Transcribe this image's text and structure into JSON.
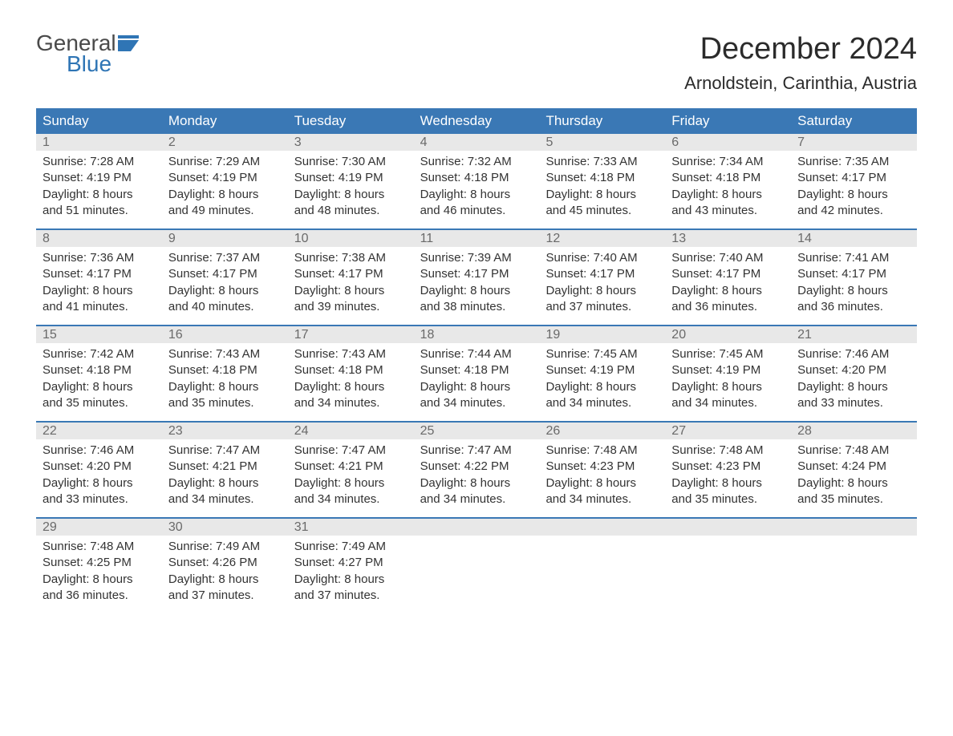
{
  "logo": {
    "line1": "General",
    "line2": "Blue"
  },
  "title": "December 2024",
  "location": "Arnoldstein, Carinthia, Austria",
  "colors": {
    "header_bg": "#3a78b5",
    "header_text": "#ffffff",
    "daynum_bg": "#e8e8e8",
    "daynum_text": "#6a6a6a",
    "rule": "#3a78b5",
    "logo_gray": "#4a4a4a",
    "logo_blue": "#2f75b5",
    "page_bg": "#ffffff",
    "body_text": "#333333"
  },
  "fonts": {
    "title_pt": 38,
    "location_pt": 22,
    "dow_pt": 17,
    "daynum_pt": 16,
    "body_pt": 15
  },
  "days_of_week": [
    "Sunday",
    "Monday",
    "Tuesday",
    "Wednesday",
    "Thursday",
    "Friday",
    "Saturday"
  ],
  "weeks": [
    [
      {
        "n": "1",
        "sunrise": "Sunrise: 7:28 AM",
        "sunset": "Sunset: 4:19 PM",
        "d1": "Daylight: 8 hours",
        "d2": "and 51 minutes."
      },
      {
        "n": "2",
        "sunrise": "Sunrise: 7:29 AM",
        "sunset": "Sunset: 4:19 PM",
        "d1": "Daylight: 8 hours",
        "d2": "and 49 minutes."
      },
      {
        "n": "3",
        "sunrise": "Sunrise: 7:30 AM",
        "sunset": "Sunset: 4:19 PM",
        "d1": "Daylight: 8 hours",
        "d2": "and 48 minutes."
      },
      {
        "n": "4",
        "sunrise": "Sunrise: 7:32 AM",
        "sunset": "Sunset: 4:18 PM",
        "d1": "Daylight: 8 hours",
        "d2": "and 46 minutes."
      },
      {
        "n": "5",
        "sunrise": "Sunrise: 7:33 AM",
        "sunset": "Sunset: 4:18 PM",
        "d1": "Daylight: 8 hours",
        "d2": "and 45 minutes."
      },
      {
        "n": "6",
        "sunrise": "Sunrise: 7:34 AM",
        "sunset": "Sunset: 4:18 PM",
        "d1": "Daylight: 8 hours",
        "d2": "and 43 minutes."
      },
      {
        "n": "7",
        "sunrise": "Sunrise: 7:35 AM",
        "sunset": "Sunset: 4:17 PM",
        "d1": "Daylight: 8 hours",
        "d2": "and 42 minutes."
      }
    ],
    [
      {
        "n": "8",
        "sunrise": "Sunrise: 7:36 AM",
        "sunset": "Sunset: 4:17 PM",
        "d1": "Daylight: 8 hours",
        "d2": "and 41 minutes."
      },
      {
        "n": "9",
        "sunrise": "Sunrise: 7:37 AM",
        "sunset": "Sunset: 4:17 PM",
        "d1": "Daylight: 8 hours",
        "d2": "and 40 minutes."
      },
      {
        "n": "10",
        "sunrise": "Sunrise: 7:38 AM",
        "sunset": "Sunset: 4:17 PM",
        "d1": "Daylight: 8 hours",
        "d2": "and 39 minutes."
      },
      {
        "n": "11",
        "sunrise": "Sunrise: 7:39 AM",
        "sunset": "Sunset: 4:17 PM",
        "d1": "Daylight: 8 hours",
        "d2": "and 38 minutes."
      },
      {
        "n": "12",
        "sunrise": "Sunrise: 7:40 AM",
        "sunset": "Sunset: 4:17 PM",
        "d1": "Daylight: 8 hours",
        "d2": "and 37 minutes."
      },
      {
        "n": "13",
        "sunrise": "Sunrise: 7:40 AM",
        "sunset": "Sunset: 4:17 PM",
        "d1": "Daylight: 8 hours",
        "d2": "and 36 minutes."
      },
      {
        "n": "14",
        "sunrise": "Sunrise: 7:41 AM",
        "sunset": "Sunset: 4:17 PM",
        "d1": "Daylight: 8 hours",
        "d2": "and 36 minutes."
      }
    ],
    [
      {
        "n": "15",
        "sunrise": "Sunrise: 7:42 AM",
        "sunset": "Sunset: 4:18 PM",
        "d1": "Daylight: 8 hours",
        "d2": "and 35 minutes."
      },
      {
        "n": "16",
        "sunrise": "Sunrise: 7:43 AM",
        "sunset": "Sunset: 4:18 PM",
        "d1": "Daylight: 8 hours",
        "d2": "and 35 minutes."
      },
      {
        "n": "17",
        "sunrise": "Sunrise: 7:43 AM",
        "sunset": "Sunset: 4:18 PM",
        "d1": "Daylight: 8 hours",
        "d2": "and 34 minutes."
      },
      {
        "n": "18",
        "sunrise": "Sunrise: 7:44 AM",
        "sunset": "Sunset: 4:18 PM",
        "d1": "Daylight: 8 hours",
        "d2": "and 34 minutes."
      },
      {
        "n": "19",
        "sunrise": "Sunrise: 7:45 AM",
        "sunset": "Sunset: 4:19 PM",
        "d1": "Daylight: 8 hours",
        "d2": "and 34 minutes."
      },
      {
        "n": "20",
        "sunrise": "Sunrise: 7:45 AM",
        "sunset": "Sunset: 4:19 PM",
        "d1": "Daylight: 8 hours",
        "d2": "and 34 minutes."
      },
      {
        "n": "21",
        "sunrise": "Sunrise: 7:46 AM",
        "sunset": "Sunset: 4:20 PM",
        "d1": "Daylight: 8 hours",
        "d2": "and 33 minutes."
      }
    ],
    [
      {
        "n": "22",
        "sunrise": "Sunrise: 7:46 AM",
        "sunset": "Sunset: 4:20 PM",
        "d1": "Daylight: 8 hours",
        "d2": "and 33 minutes."
      },
      {
        "n": "23",
        "sunrise": "Sunrise: 7:47 AM",
        "sunset": "Sunset: 4:21 PM",
        "d1": "Daylight: 8 hours",
        "d2": "and 34 minutes."
      },
      {
        "n": "24",
        "sunrise": "Sunrise: 7:47 AM",
        "sunset": "Sunset: 4:21 PM",
        "d1": "Daylight: 8 hours",
        "d2": "and 34 minutes."
      },
      {
        "n": "25",
        "sunrise": "Sunrise: 7:47 AM",
        "sunset": "Sunset: 4:22 PM",
        "d1": "Daylight: 8 hours",
        "d2": "and 34 minutes."
      },
      {
        "n": "26",
        "sunrise": "Sunrise: 7:48 AM",
        "sunset": "Sunset: 4:23 PM",
        "d1": "Daylight: 8 hours",
        "d2": "and 34 minutes."
      },
      {
        "n": "27",
        "sunrise": "Sunrise: 7:48 AM",
        "sunset": "Sunset: 4:23 PM",
        "d1": "Daylight: 8 hours",
        "d2": "and 35 minutes."
      },
      {
        "n": "28",
        "sunrise": "Sunrise: 7:48 AM",
        "sunset": "Sunset: 4:24 PM",
        "d1": "Daylight: 8 hours",
        "d2": "and 35 minutes."
      }
    ],
    [
      {
        "n": "29",
        "sunrise": "Sunrise: 7:48 AM",
        "sunset": "Sunset: 4:25 PM",
        "d1": "Daylight: 8 hours",
        "d2": "and 36 minutes."
      },
      {
        "n": "30",
        "sunrise": "Sunrise: 7:49 AM",
        "sunset": "Sunset: 4:26 PM",
        "d1": "Daylight: 8 hours",
        "d2": "and 37 minutes."
      },
      {
        "n": "31",
        "sunrise": "Sunrise: 7:49 AM",
        "sunset": "Sunset: 4:27 PM",
        "d1": "Daylight: 8 hours",
        "d2": "and 37 minutes."
      },
      {
        "n": "",
        "sunrise": "",
        "sunset": "",
        "d1": "",
        "d2": ""
      },
      {
        "n": "",
        "sunrise": "",
        "sunset": "",
        "d1": "",
        "d2": ""
      },
      {
        "n": "",
        "sunrise": "",
        "sunset": "",
        "d1": "",
        "d2": ""
      },
      {
        "n": "",
        "sunrise": "",
        "sunset": "",
        "d1": "",
        "d2": ""
      }
    ]
  ]
}
